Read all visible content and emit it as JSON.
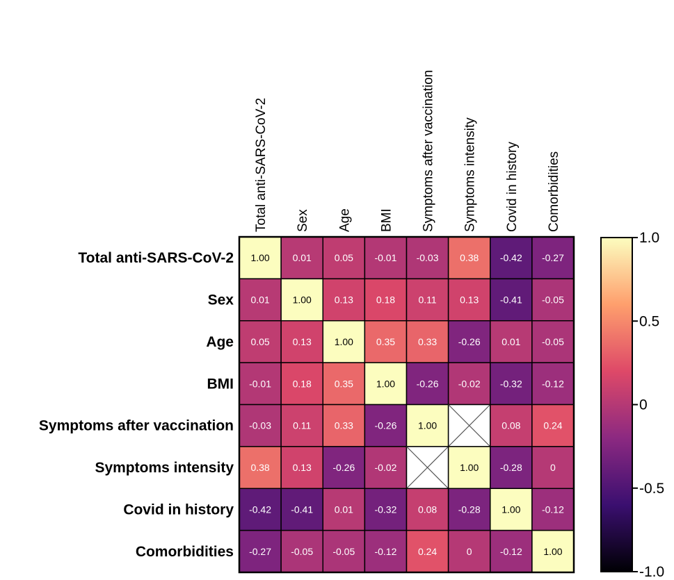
{
  "chart_data": {
    "type": "heatmap",
    "rows": [
      "Total anti-SARS-CoV-2",
      "Sex",
      "Age",
      "BMI",
      "Symptoms after vaccination",
      "Symptoms intensity",
      "Covid in history",
      "Comorbidities"
    ],
    "columns": [
      "Total anti-SARS-CoV-2",
      "Sex",
      "Age",
      "BMI",
      "Symptoms after vaccination",
      "Symptoms intensity",
      "Covid in history",
      "Comorbidities"
    ],
    "values": [
      [
        "1.00",
        "0.01",
        "0.05",
        "-0.01",
        "-0.03",
        "0.38",
        "-0.42",
        "-0.27"
      ],
      [
        "0.01",
        "1.00",
        "0.13",
        "0.18",
        "0.11",
        "0.13",
        "-0.41",
        "-0.05"
      ],
      [
        "0.05",
        "0.13",
        "1.00",
        "0.35",
        "0.33",
        "-0.26",
        "0.01",
        "-0.05"
      ],
      [
        "-0.01",
        "0.18",
        "0.35",
        "1.00",
        "-0.26",
        "-0.02",
        "-0.32",
        "-0.12"
      ],
      [
        "-0.03",
        "0.11",
        "0.33",
        "-0.26",
        "1.00",
        null,
        "0.08",
        "0.24"
      ],
      [
        "0.38",
        "0.13",
        "-0.26",
        "-0.02",
        null,
        "1.00",
        "-0.28",
        "0"
      ],
      [
        "-0.42",
        "-0.41",
        "0.01",
        "-0.32",
        "0.08",
        "-0.28",
        "1.00",
        "-0.12"
      ],
      [
        "-0.27",
        "-0.05",
        "-0.05",
        "-0.12",
        "0.24",
        "0",
        "-0.12",
        "1.00"
      ]
    ],
    "colorbar": {
      "range": [
        -1.0,
        1.0
      ],
      "ticks": [
        "1.0",
        "0.5",
        "0",
        "-0.5",
        "-1.0"
      ],
      "colormap": [
        "#000004",
        "#3b0f70",
        "#8c2981",
        "#de4968",
        "#fe9f6d",
        "#fcfdbf"
      ]
    },
    "missing_marker": "crossed box"
  }
}
